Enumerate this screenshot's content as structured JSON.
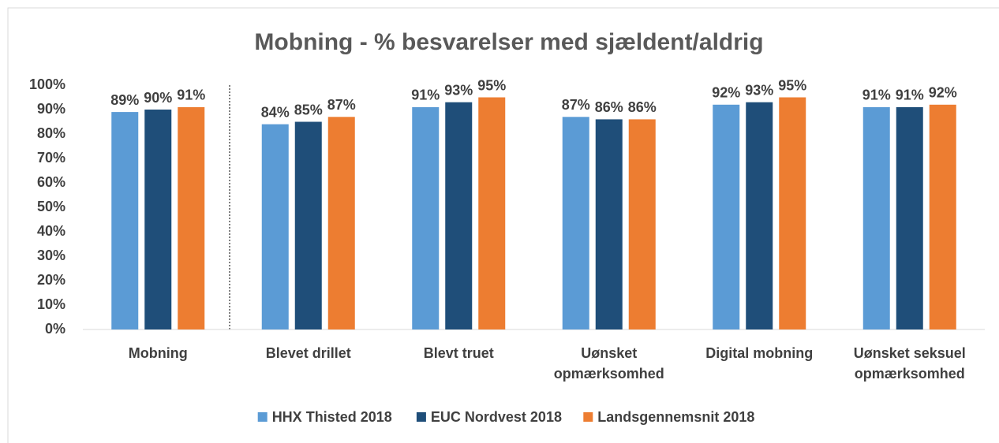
{
  "chart_data": {
    "type": "bar",
    "title": "Mobning - % besvarelser med sjældent/aldrig",
    "categories": [
      "Mobning",
      "Blevet drillet",
      "Blevt truet",
      "Uønsket opmærksomhed",
      "Digital mobning",
      "Uønsket seksuel opmærksomhed"
    ],
    "series": [
      {
        "name": "HHX Thisted 2018",
        "color": "#5b9bd5",
        "values": [
          89,
          84,
          91,
          87,
          92,
          91
        ],
        "value_labels": [
          "89%",
          "84%",
          "91%",
          "87%",
          "92%",
          "91%"
        ]
      },
      {
        "name": "EUC Nordvest 2018",
        "color": "#1f4e79",
        "values": [
          90,
          85,
          93,
          86,
          93,
          91
        ],
        "value_labels": [
          "90%",
          "85%",
          "93%",
          "86%",
          "93%",
          "91%"
        ]
      },
      {
        "name": "Landsgennemsnit 2018",
        "color": "#ed7d31",
        "values": [
          91,
          87,
          95,
          86,
          95,
          92
        ],
        "value_labels": [
          "91%",
          "87%",
          "95%",
          "86%",
          "95%",
          "92%"
        ]
      }
    ],
    "ylim": [
      0,
      100
    ],
    "yticks": [
      {
        "value": 0,
        "label": "0%"
      },
      {
        "value": 10,
        "label": "10%"
      },
      {
        "value": 20,
        "label": "20%"
      },
      {
        "value": 30,
        "label": "30%"
      },
      {
        "value": 40,
        "label": "40%"
      },
      {
        "value": 50,
        "label": "50%"
      },
      {
        "value": 60,
        "label": "60%"
      },
      {
        "value": 70,
        "label": "70%"
      },
      {
        "value": 80,
        "label": "80%"
      },
      {
        "value": 90,
        "label": "90%"
      },
      {
        "value": 100,
        "label": "100%"
      }
    ],
    "legend": "bottom"
  }
}
